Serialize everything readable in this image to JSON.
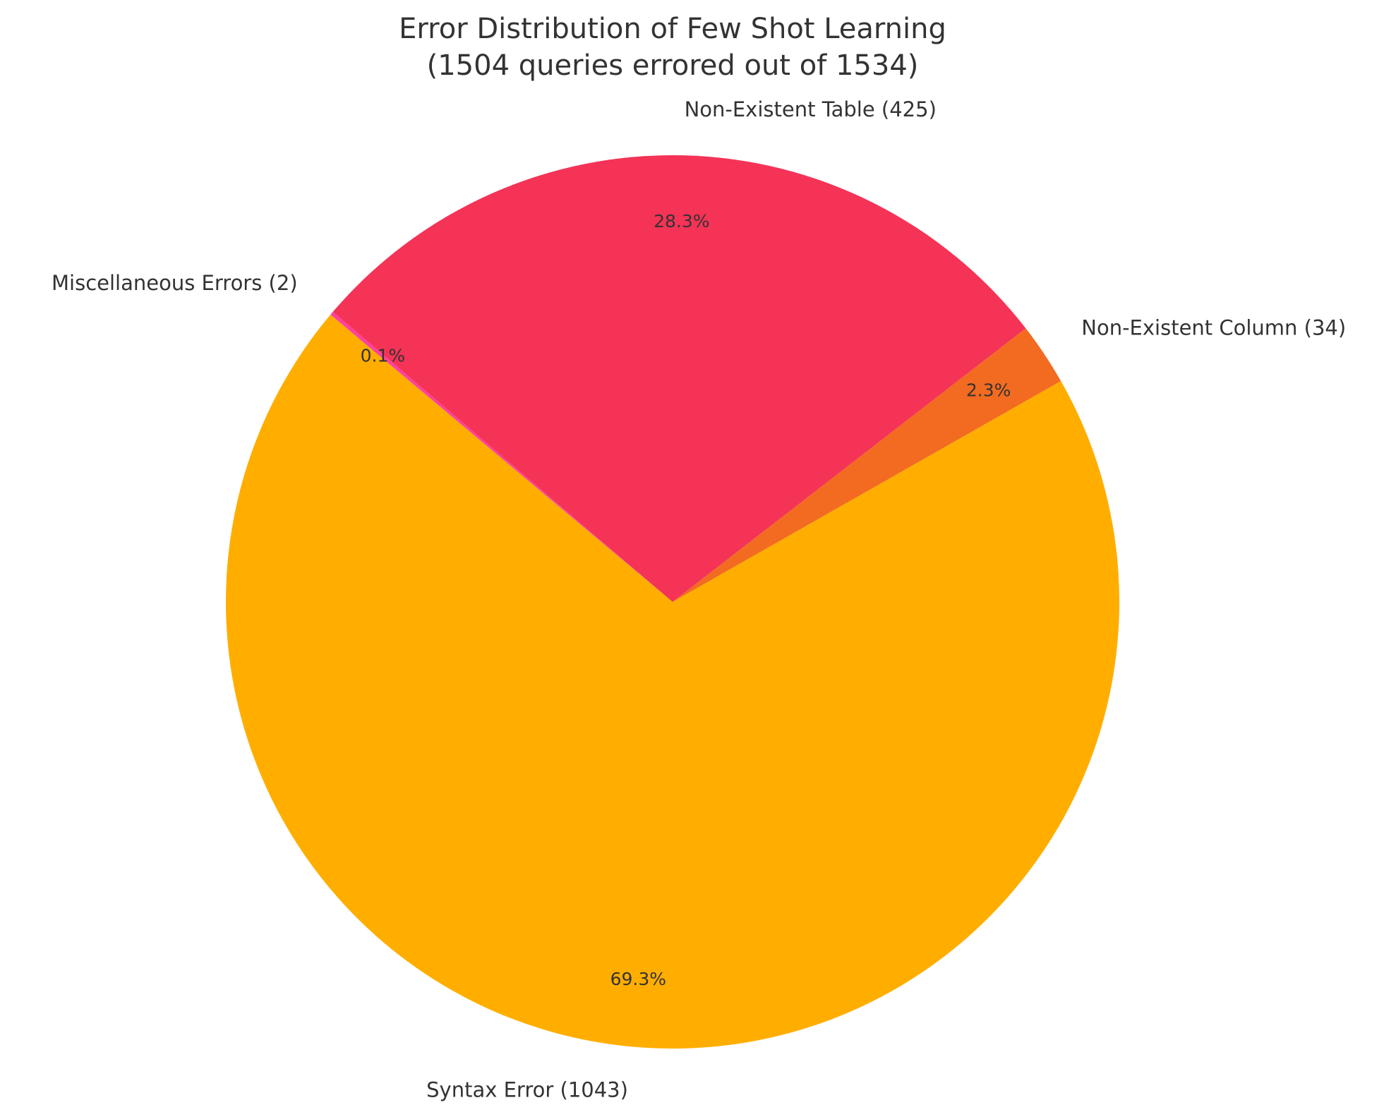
{
  "chart_data": {
    "type": "pie",
    "title": "Error Distribution of Few Shot Learning",
    "subtitle": "(1504 queries errored out of 1534)",
    "start_angle_deg": 139.5,
    "direction": "counterclockwise",
    "slices": [
      {
        "name": "Miscellaneous Errors",
        "label": "Miscellaneous Errors (2)",
        "value": 2,
        "percent_label": "0.1%",
        "color": "#ff3fa0"
      },
      {
        "name": "Syntax Error",
        "label": "Syntax Error (1043)",
        "value": 1043,
        "percent_label": "69.3%",
        "color": "#ffae00"
      },
      {
        "name": "Non-Existent Column",
        "label": "Non-Existent Column (34)",
        "value": 34,
        "percent_label": "2.3%",
        "color": "#f26b21"
      },
      {
        "name": "Non-Existent Table",
        "label": "Non-Existent Table (425)",
        "value": 425,
        "percent_label": "28.3%",
        "color": "#f43356"
      }
    ]
  }
}
